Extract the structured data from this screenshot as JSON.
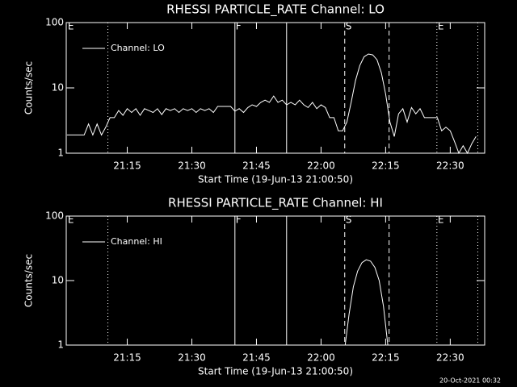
{
  "chart_data": [
    {
      "type": "line",
      "title": "RHESSI PARTICLE_RATE Channel: LO",
      "ylabel": "Counts/sec",
      "xlabel": "Start Time (19-Jun-13 21:00:50)",
      "log_y": true,
      "xlim": [
        0.83,
        98
      ],
      "ylim": [
        1,
        100
      ],
      "yticks": [
        1,
        10,
        100
      ],
      "xticks": [
        {
          "value": 15,
          "label": "21:15"
        },
        {
          "value": 30,
          "label": "21:30"
        },
        {
          "value": 45,
          "label": "21:45"
        },
        {
          "value": 60,
          "label": "22:00"
        },
        {
          "value": 75,
          "label": "22:15"
        },
        {
          "value": 90,
          "label": "22:30"
        }
      ],
      "legend": "top-left",
      "series": [
        {
          "name": "Channel: LO",
          "color": "#ffffff",
          "x": [
            1,
            2,
            3,
            4,
            5,
            6,
            7,
            8,
            9,
            10,
            11,
            12,
            13,
            14,
            15,
            16,
            17,
            18,
            19,
            20,
            21,
            22,
            23,
            24,
            25,
            26,
            27,
            28,
            29,
            30,
            31,
            32,
            33,
            34,
            35,
            36,
            37,
            38,
            39,
            40,
            41,
            42,
            43,
            44,
            45,
            46,
            47,
            48,
            49,
            50,
            51,
            52,
            53,
            54,
            55,
            56,
            57,
            58,
            59,
            60,
            61,
            62,
            63,
            64,
            65,
            66,
            67,
            68,
            69,
            70,
            71,
            72,
            73,
            74,
            75,
            76,
            77,
            78,
            79,
            80,
            81,
            82,
            83,
            84,
            85,
            86,
            87,
            88,
            89,
            90,
            91,
            92,
            93,
            94,
            95,
            96
          ],
          "values": [
            1.9,
            1.9,
            1.9,
            1.9,
            1.9,
            2.8,
            1.9,
            2.8,
            1.9,
            2.5,
            3.5,
            3.5,
            4.5,
            3.8,
            4.8,
            4.2,
            4.8,
            3.8,
            4.8,
            4.5,
            4.2,
            4.8,
            3.9,
            4.8,
            4.5,
            4.8,
            4.2,
            4.8,
            4.5,
            4.8,
            4.2,
            4.8,
            4.5,
            4.8,
            4.2,
            5.2,
            5.2,
            5.2,
            5.2,
            4.4,
            4.8,
            4.2,
            5,
            5.5,
            5.2,
            6,
            6.5,
            6,
            7.5,
            6,
            6.5,
            5.5,
            6,
            5.5,
            6.5,
            5.5,
            5,
            6,
            4.8,
            5.5,
            5,
            3.5,
            3.5,
            2.2,
            2.2,
            3,
            6,
            13,
            22,
            30,
            33,
            32,
            27,
            17,
            8,
            3,
            1.8,
            4,
            4.8,
            3,
            5,
            4,
            4.8,
            3.5,
            3.5,
            3.5,
            3.5,
            2.2,
            2.5,
            2.2,
            1.5,
            1,
            1.3,
            1,
            1.4,
            1.8
          ]
        }
      ],
      "vlines": [
        {
          "x": 10.5,
          "style": "dotted"
        },
        {
          "x": 40,
          "style": "solid"
        },
        {
          "x": 52,
          "style": "solid"
        },
        {
          "x": 65.5,
          "style": "dashed"
        },
        {
          "x": 75.8,
          "style": "dashed"
        },
        {
          "x": 86.9,
          "style": "dotted"
        },
        {
          "x": 96.4,
          "style": "dotted"
        }
      ],
      "annotations": [
        {
          "x": 1,
          "text": "E"
        },
        {
          "x": 40,
          "text": "F"
        },
        {
          "x": 65.5,
          "text": "S"
        },
        {
          "x": 86.9,
          "text": "E"
        }
      ]
    },
    {
      "type": "line",
      "title": "RHESSI PARTICLE_RATE Channel: HI",
      "ylabel": "Counts/sec",
      "xlabel": "Start Time (19-Jun-13 21:00:50)",
      "log_y": true,
      "xlim": [
        0.83,
        98
      ],
      "ylim": [
        1,
        100
      ],
      "yticks": [
        1,
        10,
        100
      ],
      "xticks": [
        {
          "value": 15,
          "label": "21:15"
        },
        {
          "value": 30,
          "label": "21:30"
        },
        {
          "value": 45,
          "label": "21:45"
        },
        {
          "value": 60,
          "label": "22:00"
        },
        {
          "value": 75,
          "label": "22:15"
        },
        {
          "value": 90,
          "label": "22:30"
        }
      ],
      "legend": "top-left",
      "series": [
        {
          "name": "Channel: HI",
          "color": "#ffffff",
          "x": [
            65.6,
            66.5,
            67.5,
            68.5,
            69.5,
            70.5,
            71.5,
            72.5,
            73.5,
            74.5,
            75.5
          ],
          "values": [
            1,
            3,
            8,
            14,
            19,
            21,
            20,
            16,
            10,
            4,
            1
          ]
        }
      ],
      "vlines": [
        {
          "x": 10.5,
          "style": "dotted"
        },
        {
          "x": 40,
          "style": "solid"
        },
        {
          "x": 52,
          "style": "solid"
        },
        {
          "x": 65.5,
          "style": "dashed"
        },
        {
          "x": 75.8,
          "style": "dashed"
        },
        {
          "x": 86.9,
          "style": "dotted"
        },
        {
          "x": 96.4,
          "style": "dotted"
        }
      ],
      "annotations": [
        {
          "x": 1,
          "text": "E"
        },
        {
          "x": 40,
          "text": "F"
        },
        {
          "x": 65.5,
          "text": "S"
        },
        {
          "x": 86.9,
          "text": "E"
        }
      ]
    }
  ],
  "footer": "20-Oct-2021 00:32"
}
